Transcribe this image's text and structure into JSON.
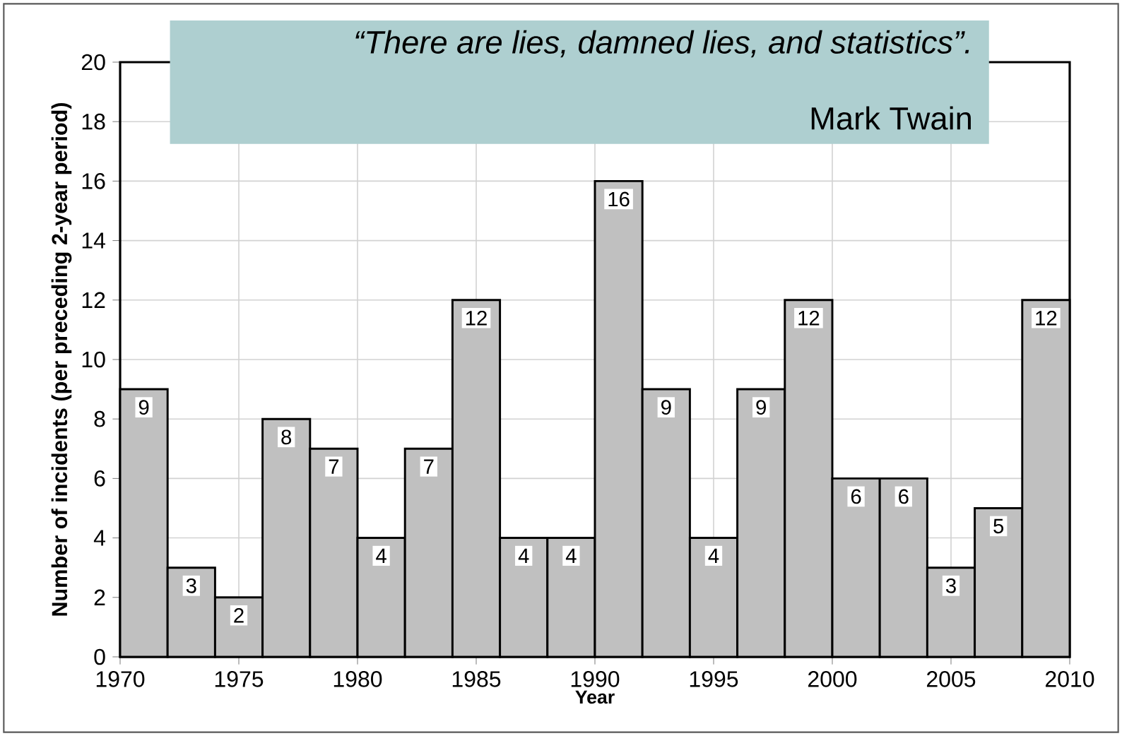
{
  "chart_data": {
    "type": "histogram",
    "xlabel": "Year",
    "ylabel": "Number of incidents (per preceding 2-year period)",
    "annotations": [
      "“There are lies, damned lies, and statistics”.",
      "Mark Twain"
    ],
    "bins": [
      1970,
      1972,
      1974,
      1976,
      1978,
      1980,
      1982,
      1984,
      1986,
      1988,
      1990,
      1992,
      1994,
      1996,
      1998,
      2000,
      2002,
      2004,
      2006,
      2008,
      2010
    ],
    "values": [
      9,
      3,
      2,
      8,
      7,
      4,
      7,
      12,
      4,
      4,
      16,
      9,
      4,
      9,
      12,
      6,
      6,
      3,
      5,
      12
    ],
    "color": "#c0c0c0",
    "xlim": [
      1970,
      2010
    ],
    "xticks": [
      1970,
      1975,
      1980,
      1985,
      1990,
      1995,
      2000,
      2005,
      2010
    ],
    "ylim": [
      0,
      20
    ],
    "yticks": [
      0,
      2,
      4,
      6,
      8,
      10,
      12,
      14,
      16,
      18,
      20
    ],
    "grid": true,
    "data_labels": true
  }
}
